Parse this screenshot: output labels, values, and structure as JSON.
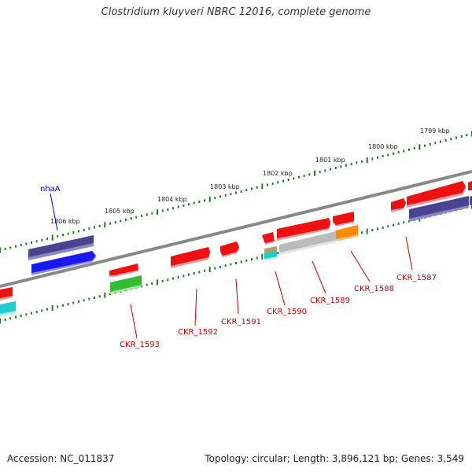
{
  "title": "Clostridium kluyveri NBRC 12016, complete genome",
  "footer": {
    "accession": "Accession: NC_011837",
    "topology": "Topology: circular; Length: 3,896,121 bp; Genes: 3,549"
  },
  "colors": {
    "backbone": "#888888",
    "scale_tick": "#1f7a1f",
    "gene_label": "#cc0000",
    "nha_label": "#0000cc",
    "red": "#ee1111",
    "navy": "#4a4490",
    "blue": "#1a1aee",
    "green": "#33bb33",
    "cyan": "#22cccc",
    "gray": "#bbbbbb",
    "orange": "#ff8c00",
    "olive": "#a8a36a"
  },
  "scale_labels": [
    "1806 kbp",
    "1805 kbp",
    "1804 kbp",
    "1803 kbp",
    "1802 kbp",
    "1801 kbp",
    "1800 kbp",
    "1799 kbp"
  ],
  "gene_labels": [
    "nhaA",
    "CKR_1593",
    "CKR_1592",
    "CKR_1591",
    "CKR_1590",
    "CKR_1589",
    "CKR_1588",
    "CKR_1587"
  ]
}
